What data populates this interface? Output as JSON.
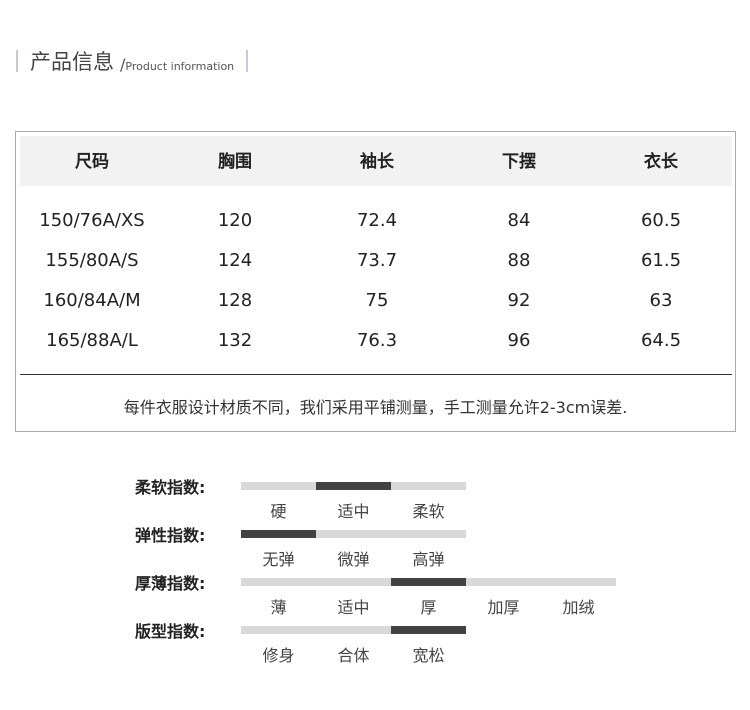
{
  "header": {
    "title_cn": "产品信息",
    "title_sep": "/",
    "title_en": "Product information"
  },
  "table": {
    "columns": [
      "尺码",
      "胸围",
      "袖长",
      "下摆",
      "衣长"
    ],
    "rows": [
      [
        "150/76A/XS",
        "120",
        "72.4",
        "84",
        "60.5"
      ],
      [
        "155/80A/S",
        "124",
        "73.7",
        "88",
        "61.5"
      ],
      [
        "160/84A/M",
        "128",
        "75",
        "92",
        "63"
      ],
      [
        "165/88A/L",
        "132",
        "76.3",
        "96",
        "64.5"
      ]
    ],
    "note": "每件衣服设计材质不同，我们采用平铺测量，手工测量允许2-3cm误差."
  },
  "indices": [
    {
      "label": "柔软指数:",
      "options": [
        "硬",
        "适中",
        "柔软"
      ],
      "selected": 1
    },
    {
      "label": "弹性指数:",
      "options": [
        "无弹",
        "微弹",
        "高弹"
      ],
      "selected": 0
    },
    {
      "label": "厚薄指数:",
      "options": [
        "薄",
        "适中",
        "厚",
        "加厚",
        "加绒"
      ],
      "selected": 2
    },
    {
      "label": "版型指数:",
      "options": [
        "修身",
        "合体",
        "宽松"
      ],
      "selected": 2
    }
  ],
  "colors": {
    "active": "#424242",
    "inactive": "#d9d9d9",
    "header_bg": "#f2f2f2"
  }
}
